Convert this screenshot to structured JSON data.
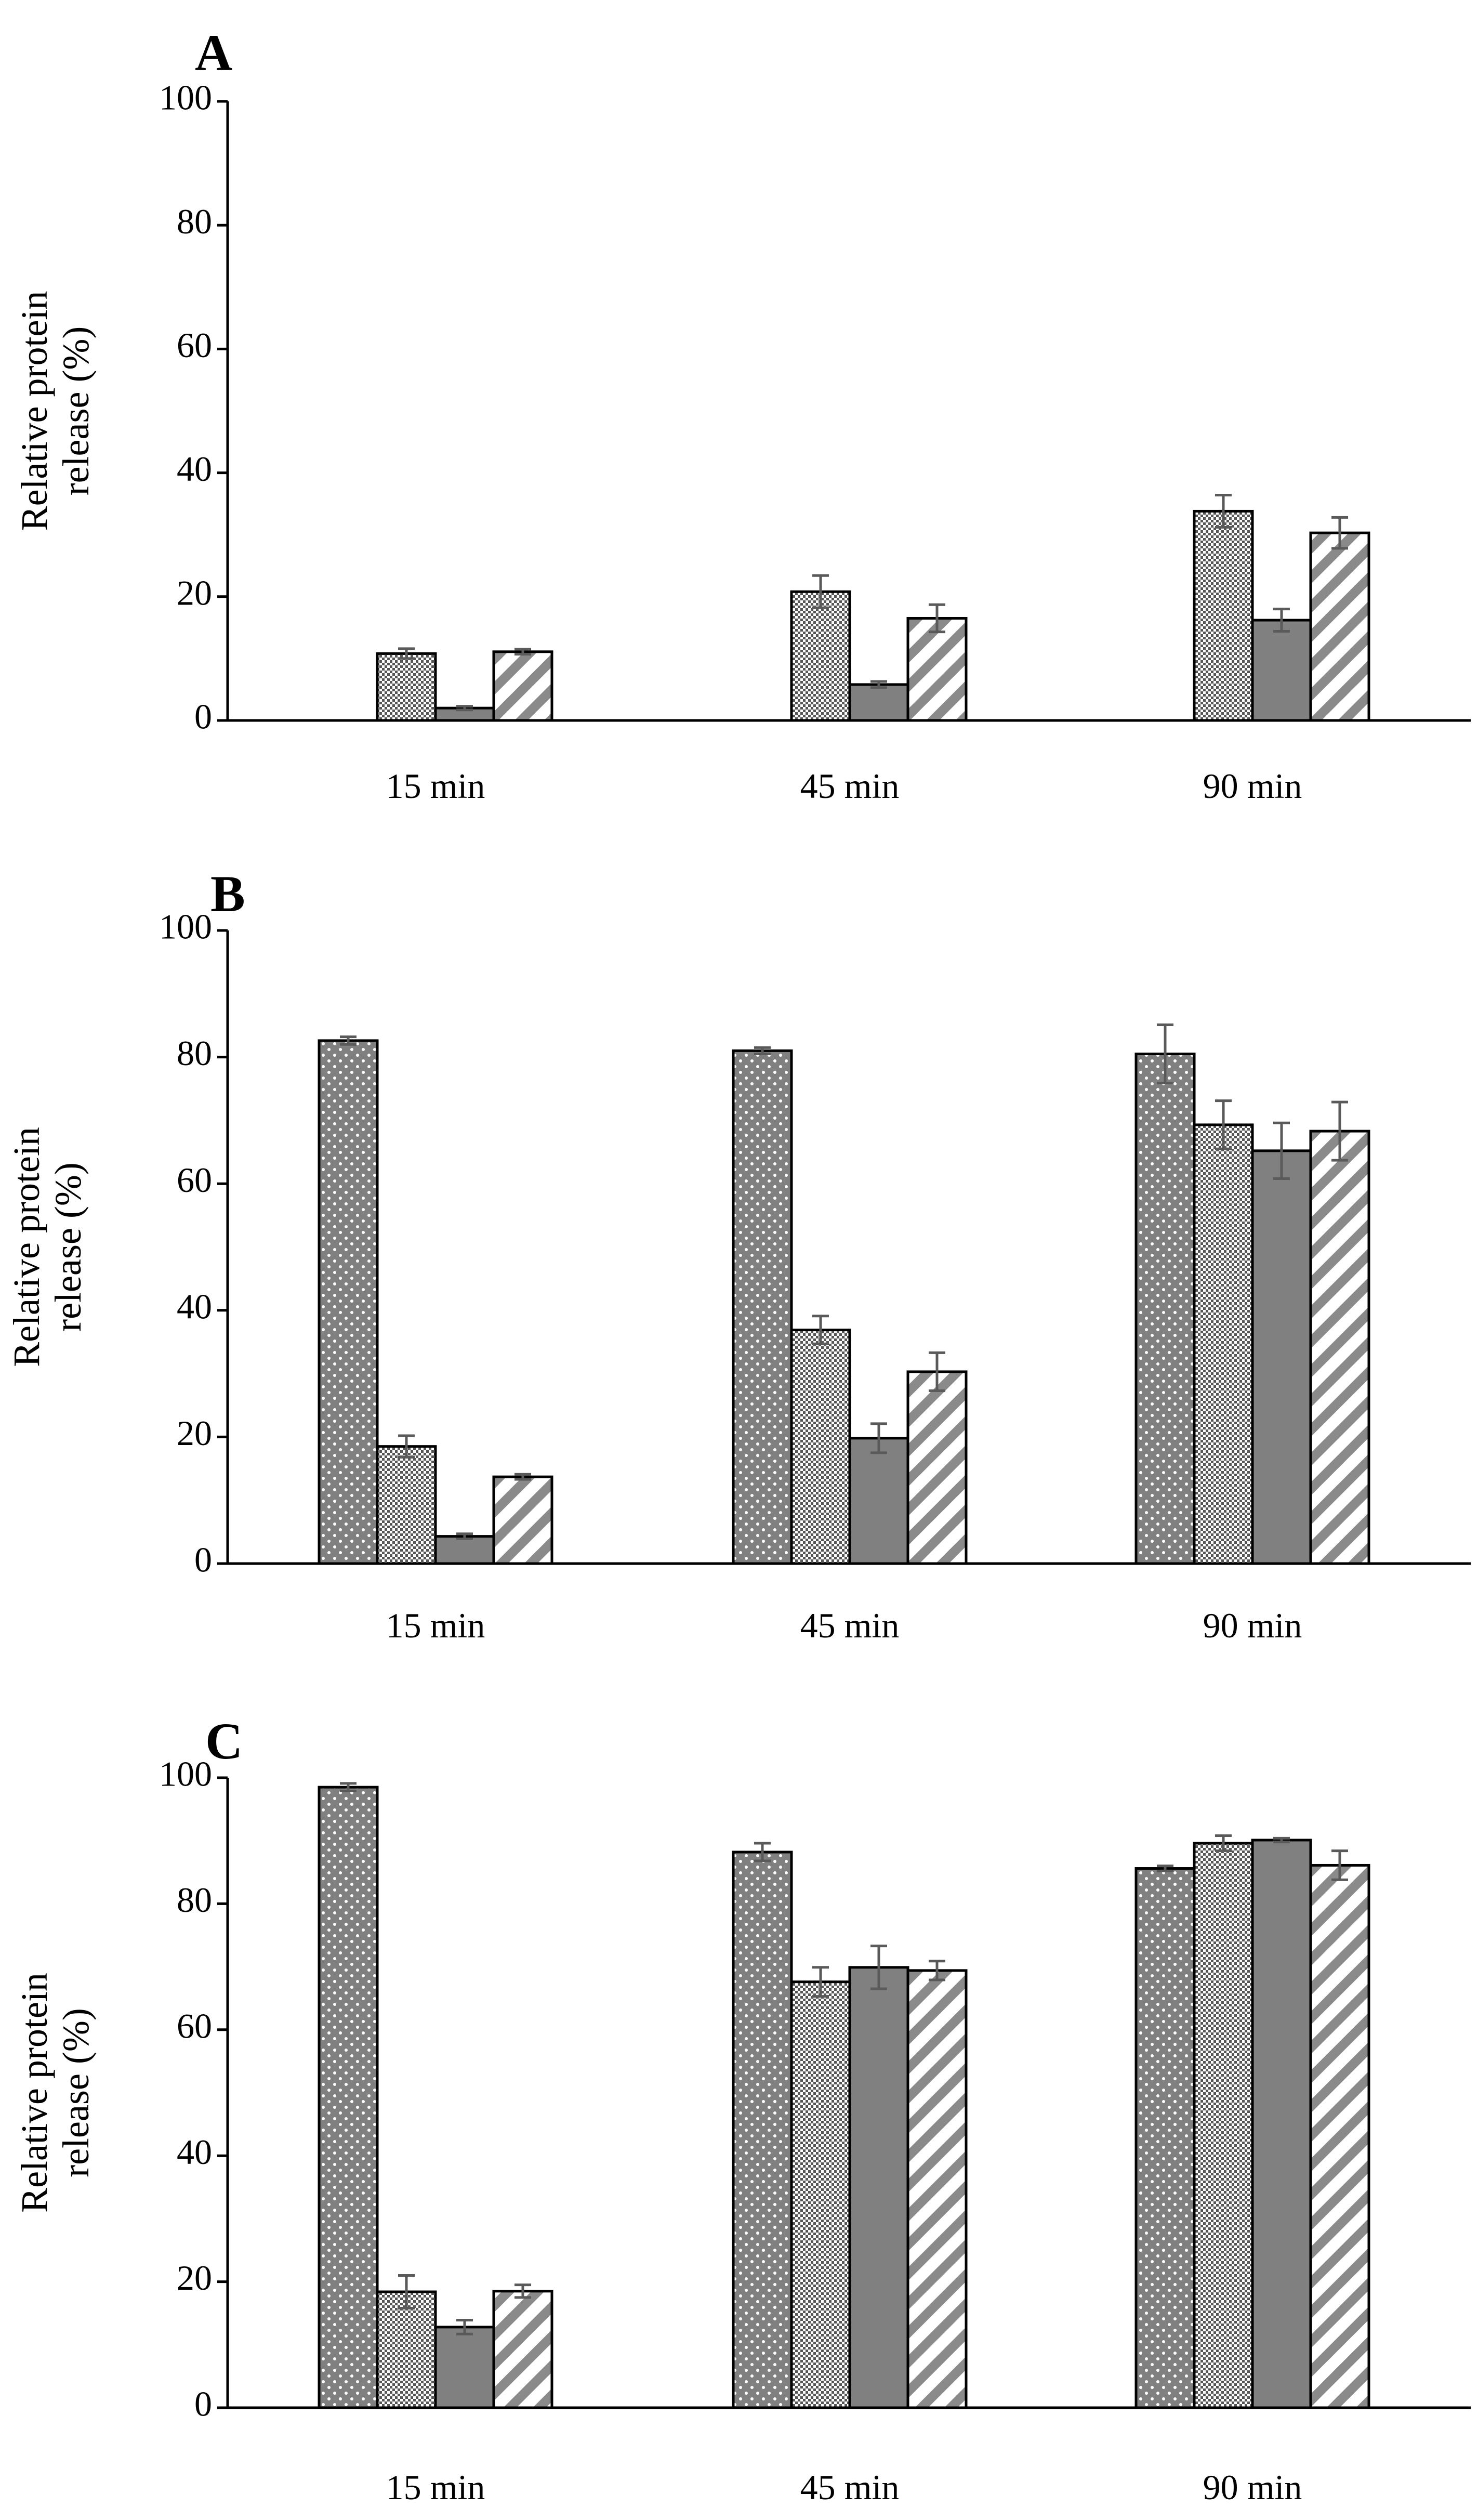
{
  "colors": {
    "bar_fill": "#808080",
    "bar_stroke": "#000000",
    "error_bar": "#5a5a5a",
    "axis": "#000000",
    "pattern_light": "#ffffff"
  },
  "chart_data": [
    {
      "panel": "A",
      "type": "bar",
      "ylabel": "Relative protein release (%)",
      "ylim": [
        0,
        100
      ],
      "yticks": [
        0,
        20,
        40,
        60,
        80,
        100
      ],
      "categories": [
        "15 min",
        "45 min",
        "90 min"
      ],
      "series": [
        {
          "pattern": "dots",
          "values": [
            null,
            null,
            null
          ],
          "errors": [
            null,
            null,
            null
          ]
        },
        {
          "pattern": "checker",
          "values": [
            10.8,
            20.8,
            33.8
          ],
          "errors": [
            0.8,
            2.6,
            2.6
          ]
        },
        {
          "pattern": "solid",
          "values": [
            2.0,
            5.8,
            16.2
          ],
          "errors": [
            0.3,
            0.5,
            1.8
          ]
        },
        {
          "pattern": "stripes",
          "values": [
            11.1,
            16.5,
            30.3
          ],
          "errors": [
            0.4,
            2.2,
            2.5
          ]
        }
      ],
      "grid": false,
      "legend": "none"
    },
    {
      "panel": "B",
      "type": "bar",
      "ylabel": "Relative protein release (%)",
      "ylim": [
        0,
        100
      ],
      "yticks": [
        0,
        20,
        40,
        60,
        80,
        100
      ],
      "categories": [
        "15 min",
        "45 min",
        "90 min"
      ],
      "series": [
        {
          "pattern": "dots",
          "values": [
            82.6,
            81.0,
            80.5
          ],
          "errors": [
            0.6,
            0.5,
            4.6
          ]
        },
        {
          "pattern": "checker",
          "values": [
            18.5,
            36.9,
            69.3
          ],
          "errors": [
            1.7,
            2.2,
            3.8
          ]
        },
        {
          "pattern": "solid",
          "values": [
            4.3,
            19.8,
            65.2
          ],
          "errors": [
            0.4,
            2.3,
            4.4
          ]
        },
        {
          "pattern": "stripes",
          "values": [
            13.7,
            30.3,
            68.3
          ],
          "errors": [
            0.4,
            3.0,
            4.6
          ]
        }
      ],
      "grid": false,
      "legend": "none"
    },
    {
      "panel": "C",
      "type": "bar",
      "ylabel": "Relative protein release (%)",
      "ylim": [
        0,
        100
      ],
      "yticks": [
        0,
        20,
        40,
        60,
        80,
        100
      ],
      "categories": [
        "15 min",
        "45 min",
        "90 min"
      ],
      "series": [
        {
          "pattern": "dots",
          "values": [
            98.5,
            88.2,
            85.6
          ],
          "errors": [
            0.6,
            1.4,
            0.4
          ]
        },
        {
          "pattern": "checker",
          "values": [
            18.4,
            67.6,
            89.6
          ],
          "errors": [
            2.6,
            2.3,
            1.2
          ]
        },
        {
          "pattern": "solid",
          "values": [
            12.8,
            69.9,
            90.1
          ],
          "errors": [
            1.1,
            3.4,
            0.3
          ]
        },
        {
          "pattern": "stripes",
          "values": [
            18.5,
            69.4,
            86.1
          ],
          "errors": [
            1.0,
            1.5,
            2.3
          ]
        }
      ],
      "grid": false,
      "legend": "none"
    }
  ]
}
